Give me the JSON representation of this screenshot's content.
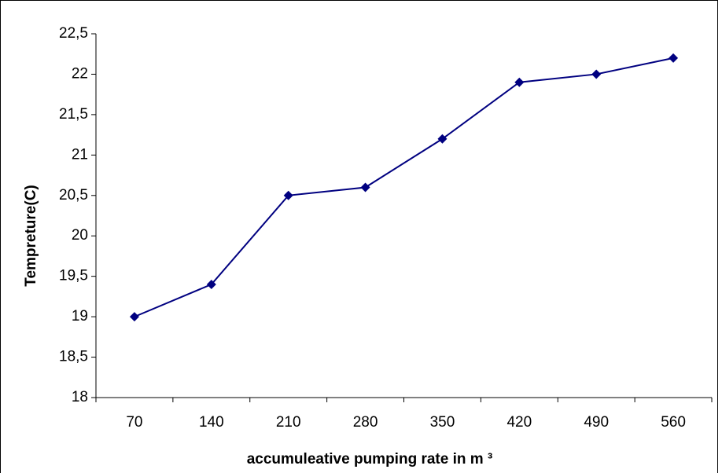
{
  "chart_data": {
    "type": "line",
    "x_label": "accumuleative pumping rate in m ³",
    "y_label": "Tempreture(C)",
    "categories": [
      "70",
      "140",
      "210",
      "280",
      "350",
      "420",
      "490",
      "560"
    ],
    "series": [
      {
        "color": "#000080",
        "values": [
          19,
          19.4,
          20.5,
          20.6,
          21.2,
          21.9,
          22,
          22.2
        ]
      }
    ],
    "ylim": [
      18,
      22.5
    ],
    "yticks": [
      18,
      {
        "value": 18.5,
        "label": "18,5"
      },
      19,
      {
        "value": 19.5,
        "label": "19,5"
      },
      20,
      {
        "value": 20.5,
        "label": "20,5"
      },
      21,
      {
        "value": 21.5,
        "label": "21,5"
      },
      22,
      {
        "value": 22.5,
        "label": "22,5"
      }
    ],
    "grid": false
  }
}
